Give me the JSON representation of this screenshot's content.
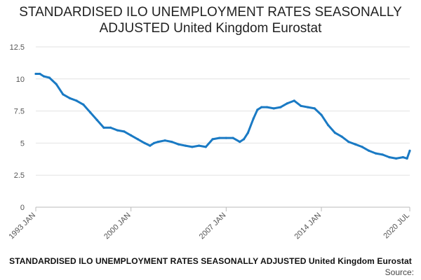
{
  "chart_data": {
    "type": "line",
    "title_line1": "STANDARDISED ILO UNEMPLOYMENT RATES SEASONALLY",
    "title_line2": "ADJUSTED United Kingdom Eurostat",
    "footer_title": "STANDARDISED ILO UNEMPLOYMENT RATES SEASONALLY ADJUSTED United Kingdom Eurostat",
    "source_label": "Source:",
    "xlabel": "",
    "ylabel": "",
    "ylim": [
      0,
      12.5
    ],
    "y_ticks": [
      0,
      2.5,
      5,
      7.5,
      10,
      12.5
    ],
    "y_tick_labels": [
      "0",
      "2.5",
      "5",
      "7.5",
      "10",
      "12.5"
    ],
    "xlim": [
      1993.0,
      2020.5
    ],
    "x_ticks": [
      {
        "value": 1993.0,
        "label": "1993 JAN"
      },
      {
        "value": 2000.0,
        "label": "2000 JAN"
      },
      {
        "value": 2007.0,
        "label": "2007 JAN"
      },
      {
        "value": 2014.0,
        "label": "2014 JAN"
      },
      {
        "value": 2020.5,
        "label": "2020 JUL"
      }
    ],
    "line_color": "#1a7ac4",
    "grid_color": "#e2e2e2",
    "series": [
      {
        "name": "United Kingdom",
        "x": [
          1993.0,
          1993.3,
          1993.6,
          1994.0,
          1994.5,
          1995.0,
          1995.5,
          1996.0,
          1996.5,
          1997.0,
          1997.5,
          1998.0,
          1998.5,
          1999.0,
          1999.5,
          2000.0,
          2000.5,
          2001.0,
          2001.4,
          2001.7,
          2002.0,
          2002.5,
          2003.0,
          2003.5,
          2004.0,
          2004.5,
          2005.0,
          2005.5,
          2006.0,
          2006.5,
          2007.0,
          2007.5,
          2008.0,
          2008.3,
          2008.6,
          2009.0,
          2009.3,
          2009.6,
          2010.0,
          2010.5,
          2011.0,
          2011.5,
          2012.0,
          2012.5,
          2013.0,
          2013.5,
          2014.0,
          2014.5,
          2015.0,
          2015.5,
          2016.0,
          2016.5,
          2017.0,
          2017.5,
          2018.0,
          2018.5,
          2019.0,
          2019.5,
          2020.0,
          2020.3,
          2020.5
        ],
        "values": [
          10.4,
          10.4,
          10.2,
          10.1,
          9.6,
          8.8,
          8.5,
          8.3,
          8.0,
          7.4,
          6.8,
          6.2,
          6.2,
          6.0,
          5.9,
          5.6,
          5.3,
          5.0,
          4.8,
          5.0,
          5.1,
          5.2,
          5.1,
          4.9,
          4.8,
          4.7,
          4.8,
          4.7,
          5.3,
          5.4,
          5.4,
          5.4,
          5.1,
          5.3,
          5.8,
          6.9,
          7.6,
          7.8,
          7.8,
          7.7,
          7.8,
          8.1,
          8.3,
          7.9,
          7.8,
          7.7,
          7.2,
          6.4,
          5.8,
          5.5,
          5.1,
          4.9,
          4.7,
          4.4,
          4.2,
          4.1,
          3.9,
          3.8,
          3.9,
          3.8,
          4.4
        ]
      }
    ]
  }
}
